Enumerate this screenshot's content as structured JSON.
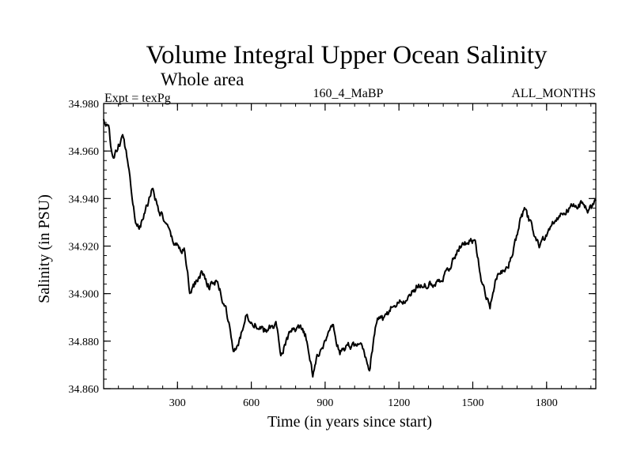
{
  "chart_data": {
    "type": "line",
    "title": "Volume Integral Upper Ocean Salinity",
    "subtitle": "Whole area",
    "annotations": {
      "left": "Expt = texPg",
      "center": "160_4_MaBP",
      "right": "ALL_MONTHS"
    },
    "xlabel": "Time (in years since start)",
    "ylabel": "Salinity (in PSU)",
    "xlim": [
      0,
      2000
    ],
    "ylim": [
      34.86,
      34.98
    ],
    "xticks": [
      300,
      600,
      900,
      1200,
      1500,
      1800
    ],
    "xtick_labels": [
      "300",
      "600",
      "900",
      "1200",
      "1500",
      "1800"
    ],
    "yticks": [
      34.86,
      34.88,
      34.9,
      34.92,
      34.94,
      34.96,
      34.98
    ],
    "ytick_labels": [
      "34.860",
      "34.880",
      "34.900",
      "34.920",
      "34.940",
      "34.960",
      "34.980"
    ],
    "grid": false,
    "series": [
      {
        "name": "salinity",
        "color": "#000000",
        "x": [
          0,
          20,
          40,
          60,
          80,
          100,
          110,
          130,
          150,
          170,
          200,
          220,
          250,
          280,
          300,
          330,
          350,
          370,
          400,
          430,
          460,
          500,
          530,
          550,
          580,
          600,
          650,
          700,
          720,
          760,
          800,
          820,
          850,
          870,
          900,
          930,
          960,
          1000,
          1050,
          1080,
          1110,
          1140,
          1170,
          1200,
          1240,
          1280,
          1320,
          1360,
          1400,
          1440,
          1480,
          1510,
          1540,
          1570,
          1600,
          1630,
          1660,
          1690,
          1710,
          1740,
          1770,
          1800,
          1830,
          1860,
          1900,
          1940,
          1970,
          2000
        ],
        "y": [
          34.973,
          34.969,
          34.956,
          34.962,
          34.966,
          34.955,
          34.947,
          34.93,
          34.928,
          34.935,
          34.945,
          34.936,
          34.93,
          34.922,
          34.92,
          34.918,
          34.9,
          34.904,
          34.909,
          34.903,
          34.905,
          34.892,
          34.875,
          34.879,
          34.891,
          34.889,
          34.884,
          34.887,
          34.875,
          34.884,
          34.885,
          34.882,
          34.866,
          34.874,
          34.88,
          34.887,
          34.875,
          34.878,
          34.878,
          34.868,
          34.889,
          34.889,
          34.894,
          34.896,
          34.898,
          34.904,
          34.904,
          34.905,
          34.91,
          34.919,
          34.922,
          34.922,
          34.903,
          34.895,
          34.908,
          34.911,
          34.915,
          34.93,
          34.935,
          34.928,
          34.92,
          34.925,
          34.931,
          34.934,
          34.936,
          34.938,
          34.934,
          34.939
        ]
      }
    ]
  }
}
